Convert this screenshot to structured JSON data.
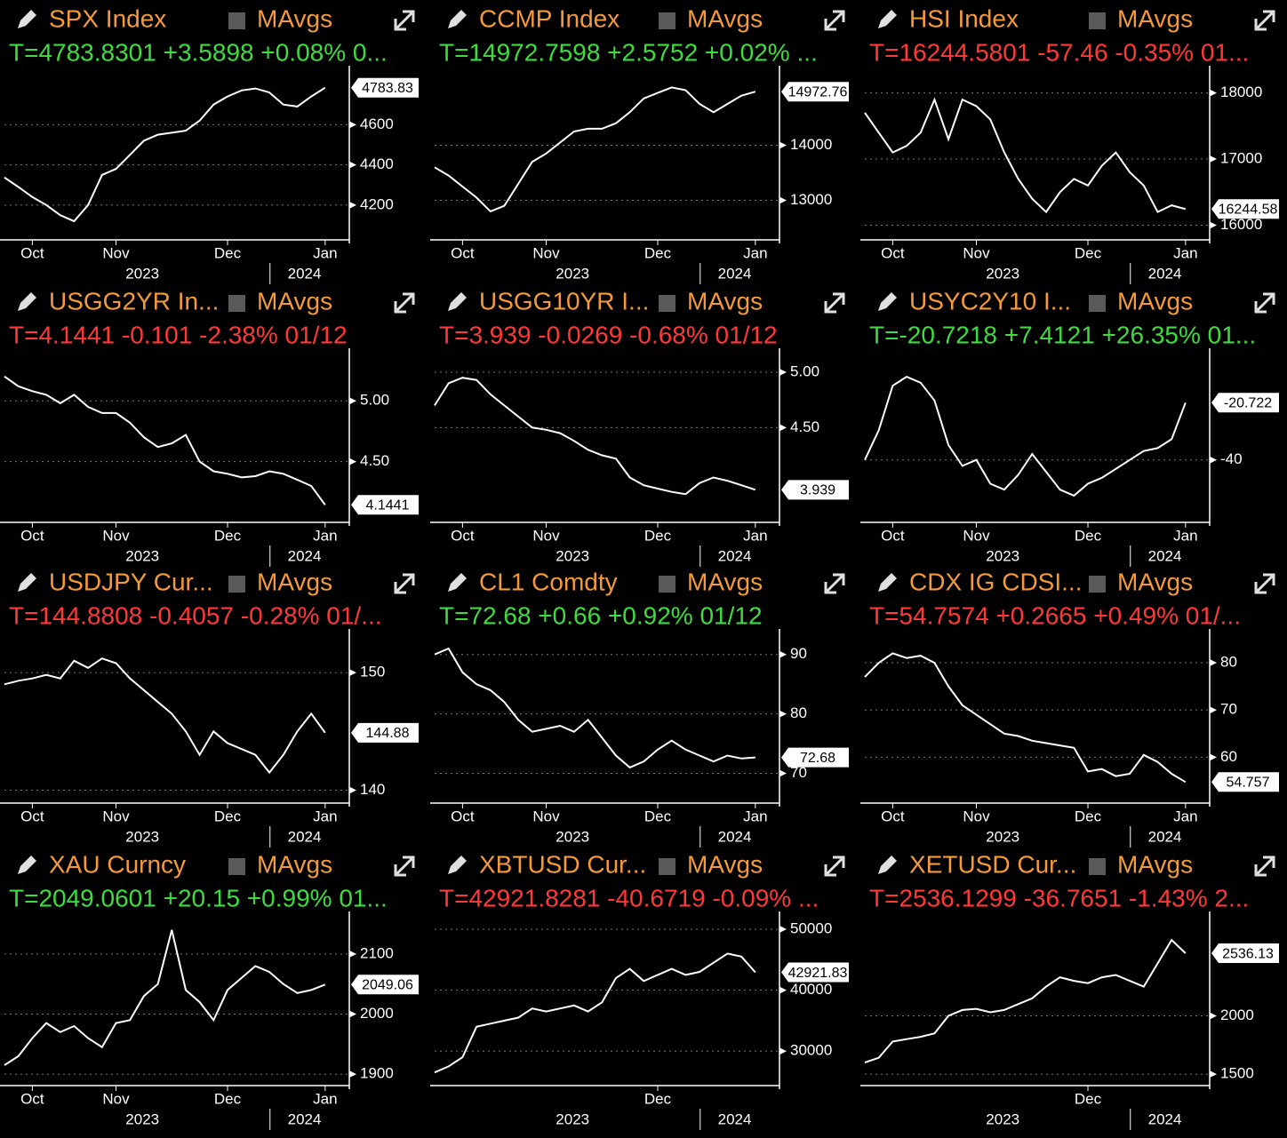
{
  "chart_data": [
    {
      "type": "line",
      "title": "SPX Index",
      "mavgs": "MAvgs",
      "quote": "T=4783.8301 +3.5898 +0.08% 0...",
      "quote_color": "#3fdc3f",
      "color": "#ffffff",
      "categories": [
        null,
        null,
        "Oct",
        null,
        null,
        null,
        null,
        null,
        "Nov",
        null,
        null,
        null,
        null,
        null,
        null,
        null,
        "Dec",
        null,
        null,
        null,
        null,
        null,
        null,
        "Jan"
      ],
      "years": [
        "2023",
        "2024"
      ],
      "values": [
        4337,
        4290,
        4240,
        4200,
        4150,
        4120,
        4200,
        4350,
        4380,
        4450,
        4520,
        4550,
        4560,
        4570,
        4620,
        4700,
        4740,
        4770,
        4780,
        4760,
        4700,
        4690,
        4740,
        4783.83
      ],
      "last_label": "4783.83",
      "ylim": [
        4027,
        4840
      ],
      "yticks": [
        4200,
        4400,
        4600
      ],
      "grid": true
    },
    {
      "type": "line",
      "title": "CCMP Index",
      "mavgs": "MAvgs",
      "quote": "T=14972.7598 +2.5752 +0.02% ...",
      "quote_color": "#3fdc3f",
      "color": "#ffffff",
      "categories": [
        null,
        null,
        "Oct",
        null,
        null,
        null,
        null,
        null,
        "Nov",
        null,
        null,
        null,
        null,
        null,
        null,
        null,
        "Dec",
        null,
        null,
        null,
        null,
        null,
        null,
        "Jan"
      ],
      "years": [
        "2023",
        "2024"
      ],
      "values": [
        13600,
        13450,
        13250,
        13050,
        12800,
        12900,
        13300,
        13700,
        13850,
        14050,
        14250,
        14300,
        14300,
        14400,
        14600,
        14850,
        14950,
        15050,
        15000,
        14750,
        14600,
        14750,
        14900,
        14972.76
      ],
      "last_label": "14972.76",
      "ylim": [
        12283,
        15250
      ],
      "yticks": [
        13000,
        14000
      ],
      "grid": true
    },
    {
      "type": "line",
      "title": "HSI Index",
      "mavgs": "MAvgs",
      "quote": "T=16244.5801 -57.46 -0.35% 01...",
      "quote_color": "#ff3838",
      "color": "#ffffff",
      "categories": [
        null,
        null,
        "Oct",
        null,
        null,
        null,
        null,
        null,
        "Nov",
        null,
        null,
        null,
        null,
        null,
        null,
        null,
        "Dec",
        null,
        null,
        null,
        null,
        null,
        null,
        "Jan"
      ],
      "years": [
        "2023",
        "2024"
      ],
      "values": [
        17700,
        17400,
        17100,
        17200,
        17400,
        17900,
        17300,
        17900,
        17800,
        17600,
        17100,
        16700,
        16400,
        16200,
        16500,
        16700,
        16600,
        16900,
        17100,
        16800,
        16600,
        16200,
        16300,
        16244.58
      ],
      "last_label": "16244.58",
      "ylim": [
        15778,
        18250
      ],
      "yticks": [
        16000,
        17000,
        18000
      ],
      "grid": true
    },
    {
      "type": "line",
      "title": "USGG2YR In...",
      "mavgs": "MAvgs",
      "quote": "T=4.1441 -0.101 -2.38% 01/12",
      "quote_color": "#ff3838",
      "color": "#ffffff",
      "categories": [
        null,
        null,
        "Oct",
        null,
        null,
        null,
        null,
        null,
        "Nov",
        null,
        null,
        null,
        null,
        null,
        null,
        null,
        "Dec",
        null,
        null,
        null,
        null,
        null,
        null,
        "Jan"
      ],
      "years": [
        "2023",
        "2024"
      ],
      "values": [
        5.2,
        5.12,
        5.08,
        5.05,
        4.98,
        5.05,
        4.95,
        4.9,
        4.9,
        4.82,
        4.7,
        4.62,
        4.65,
        4.72,
        4.5,
        4.42,
        4.4,
        4.37,
        4.38,
        4.42,
        4.4,
        4.35,
        4.3,
        4.1441
      ],
      "last_label": "4.1441",
      "ylim": [
        4.0,
        5.345
      ],
      "yticks": [
        {
          "value": 4.5,
          "label": "4.50"
        },
        {
          "value": 5,
          "label": "5.00"
        }
      ],
      "grid": true
    },
    {
      "type": "line",
      "title": "USGG10YR I...",
      "mavgs": "MAvgs",
      "quote": "T=3.939 -0.0269 -0.68% 01/12",
      "quote_color": "#ff3838",
      "color": "#ffffff",
      "categories": [
        null,
        null,
        "Oct",
        null,
        null,
        null,
        null,
        null,
        "Nov",
        null,
        null,
        null,
        null,
        null,
        null,
        null,
        "Dec",
        null,
        null,
        null,
        null,
        null,
        null,
        "Jan"
      ],
      "years": [
        "2023",
        "2024"
      ],
      "values": [
        4.7,
        4.9,
        4.95,
        4.93,
        4.8,
        4.7,
        4.6,
        4.5,
        4.48,
        4.45,
        4.38,
        4.3,
        4.25,
        4.22,
        4.05,
        3.98,
        3.95,
        3.92,
        3.9,
        4.0,
        4.05,
        4.02,
        3.98,
        3.939
      ],
      "last_label": "3.939",
      "ylim": [
        3.645,
        5.12
      ],
      "yticks": [
        {
          "value": 4.5,
          "label": "4.50"
        },
        {
          "value": 5,
          "label": "5.00"
        }
      ],
      "grid": true
    },
    {
      "type": "line",
      "title": "USYC2Y10 I...",
      "mavgs": "MAvgs",
      "quote": "T=-20.7218 +7.4121 +26.35% 01...",
      "quote_color": "#3fdc3f",
      "color": "#ffffff",
      "categories": [
        null,
        null,
        "Oct",
        null,
        null,
        null,
        null,
        null,
        "Nov",
        null,
        null,
        null,
        null,
        null,
        null,
        null,
        "Dec",
        null,
        null,
        null,
        null,
        null,
        null,
        "Jan"
      ],
      "years": [
        "2023",
        "2024"
      ],
      "values": [
        -40,
        -30,
        -15,
        -12,
        -14,
        -20,
        -35,
        -42,
        -40,
        -48,
        -50,
        -45,
        -38,
        -44,
        -50,
        -52,
        -48,
        -46,
        -43,
        -40,
        -37,
        -36,
        -33,
        -20.722
      ],
      "last_label": "-20.722",
      "ylim": [
        -61,
        -6
      ],
      "yticks": [
        -40
      ],
      "grid": true
    },
    {
      "type": "line",
      "title": "USDJPY Cur...",
      "mavgs": "MAvgs",
      "quote": "T=144.8808 -0.4057 -0.28% 01/...",
      "quote_color": "#ff3838",
      "color": "#ffffff",
      "categories": [
        null,
        null,
        "Oct",
        null,
        null,
        null,
        null,
        null,
        "Nov",
        null,
        null,
        null,
        null,
        null,
        null,
        null,
        "Dec",
        null,
        null,
        null,
        null,
        null,
        null,
        "Jan"
      ],
      "years": [
        "2023",
        "2024"
      ],
      "values": [
        149,
        149.3,
        149.5,
        149.8,
        149.5,
        151,
        150.4,
        151.2,
        150.8,
        149.5,
        148.5,
        147.5,
        146.5,
        145,
        143,
        145,
        144,
        143.5,
        143,
        141.5,
        143,
        145,
        146.5,
        144.88
      ],
      "last_label": "144.88",
      "ylim": [
        138.9,
        152.8
      ],
      "yticks": [
        140,
        150
      ],
      "grid": true
    },
    {
      "type": "line",
      "title": "CL1 Comdty",
      "mavgs": "MAvgs",
      "quote": "T=72.68 +0.66 +0.92% 01/12",
      "quote_color": "#3fdc3f",
      "color": "#ffffff",
      "categories": [
        null,
        null,
        "Oct",
        null,
        null,
        null,
        null,
        null,
        "Nov",
        null,
        null,
        null,
        null,
        null,
        null,
        null,
        "Dec",
        null,
        null,
        null,
        null,
        null,
        null,
        "Jan"
      ],
      "years": [
        "2023",
        "2024"
      ],
      "values": [
        90,
        91,
        87,
        85,
        84,
        82,
        79,
        77,
        77.5,
        78,
        77,
        79,
        76,
        73,
        71,
        72,
        74,
        75.5,
        74,
        73,
        72,
        73,
        72.5,
        72.68
      ],
      "last_label": "72.68",
      "ylim": [
        65,
        92.5
      ],
      "yticks": [
        70,
        80,
        90
      ],
      "grid": true
    },
    {
      "type": "line",
      "title": "CDX IG CDSI...",
      "mavgs": "MAvgs",
      "quote": "T=54.7574 +0.2665 +0.49% 01/...",
      "quote_color": "#ff3838",
      "color": "#ffffff",
      "categories": [
        null,
        null,
        "Oct",
        null,
        null,
        null,
        null,
        null,
        "Nov",
        null,
        null,
        null,
        null,
        null,
        null,
        null,
        "Dec",
        null,
        null,
        null,
        null,
        null,
        null,
        "Jan"
      ],
      "years": [
        "2023",
        "2024"
      ],
      "values": [
        77,
        80,
        82,
        81,
        81.5,
        80,
        75,
        71,
        69,
        67,
        65,
        64.5,
        63.5,
        63,
        62.5,
        62,
        57,
        57.5,
        56,
        56.5,
        60.5,
        59,
        56.5,
        54.757
      ],
      "last_label": "54.757",
      "ylim": [
        50.3,
        84.9
      ],
      "yticks": [
        60,
        70,
        80
      ],
      "grid": true
    },
    {
      "type": "line",
      "title": "XAU Curncy",
      "mavgs": "MAvgs",
      "quote": "T=2049.0601 +20.15 +0.99% 01...",
      "quote_color": "#3fdc3f",
      "color": "#ffffff",
      "categories": [
        null,
        null,
        "Oct",
        null,
        null,
        null,
        null,
        null,
        "Nov",
        null,
        null,
        null,
        null,
        null,
        null,
        null,
        "Dec",
        null,
        null,
        null,
        null,
        null,
        null,
        "Jan"
      ],
      "years": [
        "2023",
        "2024"
      ],
      "values": [
        1915,
        1930,
        1960,
        1985,
        1970,
        1980,
        1960,
        1945,
        1985,
        1990,
        2030,
        2050,
        2140,
        2040,
        2020,
        1990,
        2040,
        2060,
        2080,
        2070,
        2050,
        2035,
        2040,
        2049.06
      ],
      "last_label": "2049.06",
      "ylim": [
        1881,
        2153
      ],
      "yticks": [
        1900,
        2000,
        2100
      ],
      "grid": true
    },
    {
      "type": "line",
      "title": "XBTUSD Cur...",
      "mavgs": "MAvgs",
      "quote": "T=42921.8281 -40.6719 -0.09% ...",
      "quote_color": "#ff3838",
      "color": "#ffffff",
      "categories": [
        null,
        null,
        null,
        null,
        null,
        null,
        null,
        null,
        null,
        null,
        null,
        null,
        null,
        null,
        null,
        null,
        "Dec",
        null,
        null,
        null,
        null,
        null,
        null,
        null
      ],
      "years": [
        "2023",
        "2024"
      ],
      "values": [
        26500,
        27500,
        29000,
        34000,
        34500,
        35000,
        35500,
        37000,
        36500,
        37000,
        37500,
        36500,
        38000,
        42000,
        43500,
        41500,
        42500,
        43500,
        42500,
        43000,
        44500,
        46000,
        45500,
        42921.83
      ],
      "last_label": "42921.83",
      "ylim": [
        24350,
        51160
      ],
      "yticks": [
        30000,
        40000,
        50000
      ],
      "grid": true
    },
    {
      "type": "line",
      "title": "XETUSD Cur...",
      "mavgs": "MAvgs",
      "quote": "T=2536.1299 -36.7651 -1.43% 2...",
      "quote_color": "#ff3838",
      "color": "#ffffff",
      "categories": [
        null,
        null,
        null,
        null,
        null,
        null,
        null,
        null,
        null,
        null,
        null,
        null,
        null,
        null,
        null,
        null,
        "Dec",
        null,
        null,
        null,
        null,
        null,
        null,
        null
      ],
      "years": [
        "2023",
        "2024"
      ],
      "values": [
        1600,
        1640,
        1780,
        1800,
        1820,
        1850,
        2000,
        2050,
        2060,
        2030,
        2050,
        2100,
        2150,
        2250,
        2330,
        2300,
        2280,
        2330,
        2350,
        2300,
        2250,
        2450,
        2650,
        2536.13
      ],
      "last_label": "2536.13",
      "ylim": [
        1402,
        2803
      ],
      "yticks": [
        1500,
        2000
      ],
      "grid": true
    }
  ]
}
